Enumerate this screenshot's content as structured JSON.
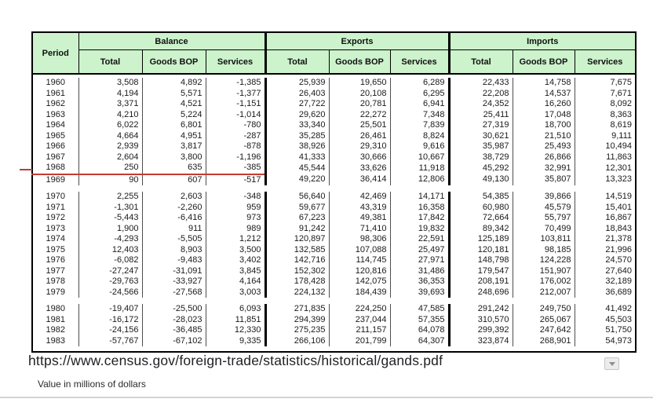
{
  "page": {
    "url_text": "https://www.census.gov/foreign-trade/statistics/historical/gands.pdf",
    "caption": "Value in millions of dollars",
    "dropdown_icon": "chevron-down-icon"
  },
  "colors": {
    "header_bg": "#ccf3cc",
    "table_border": "#000000",
    "red_annotation": "#c23b33",
    "bottom_rule": "#d4d4d4"
  },
  "table": {
    "period_header": "Period",
    "groups": [
      {
        "label": "Balance",
        "columns": [
          "Total",
          "Goods BOP",
          "Services"
        ]
      },
      {
        "label": "Exports",
        "columns": [
          "Total",
          "Goods BOP",
          "Services"
        ]
      },
      {
        "label": "Imports",
        "columns": [
          "Total",
          "Goods BOP",
          "Services"
        ]
      }
    ],
    "annotation": {
      "type": "red-underline",
      "after_period": "1968"
    },
    "row_blocks": [
      {
        "rows": [
          {
            "period": "1960",
            "values": [
              "3,508",
              "4,892",
              "-1,385",
              "25,939",
              "19,650",
              "6,289",
              "22,433",
              "14,758",
              "7,675"
            ]
          },
          {
            "period": "1961",
            "values": [
              "4,194",
              "5,571",
              "-1,377",
              "26,403",
              "20,108",
              "6,295",
              "22,208",
              "14,537",
              "7,671"
            ]
          },
          {
            "period": "1962",
            "values": [
              "3,371",
              "4,521",
              "-1,151",
              "27,722",
              "20,781",
              "6,941",
              "24,352",
              "16,260",
              "8,092"
            ]
          },
          {
            "period": "1963",
            "values": [
              "4,210",
              "5,224",
              "-1,014",
              "29,620",
              "22,272",
              "7,348",
              "25,411",
              "17,048",
              "8,363"
            ]
          },
          {
            "period": "1964",
            "values": [
              "6,022",
              "6,801",
              "-780",
              "33,340",
              "25,501",
              "7,839",
              "27,319",
              "18,700",
              "8,619"
            ]
          },
          {
            "period": "1965",
            "values": [
              "4,664",
              "4,951",
              "-287",
              "35,285",
              "26,461",
              "8,824",
              "30,621",
              "21,510",
              "9,111"
            ]
          },
          {
            "period": "1966",
            "values": [
              "2,939",
              "3,817",
              "-878",
              "38,926",
              "29,310",
              "9,616",
              "35,987",
              "25,493",
              "10,494"
            ]
          },
          {
            "period": "1967",
            "values": [
              "2,604",
              "3,800",
              "-1,196",
              "41,333",
              "30,666",
              "10,667",
              "38,729",
              "26,866",
              "11,863"
            ]
          },
          {
            "period": "1968",
            "values": [
              "250",
              "635",
              "-385",
              "45,544",
              "33,626",
              "11,918",
              "45,292",
              "32,991",
              "12,301"
            ]
          },
          {
            "period": "1969",
            "values": [
              "90",
              "607",
              "-517",
              "49,220",
              "36,414",
              "12,806",
              "49,130",
              "35,807",
              "13,323"
            ]
          }
        ]
      },
      {
        "rows": [
          {
            "period": "1970",
            "values": [
              "2,255",
              "2,603",
              "-348",
              "56,640",
              "42,469",
              "14,171",
              "54,385",
              "39,866",
              "14,519"
            ]
          },
          {
            "period": "1971",
            "values": [
              "-1,301",
              "-2,260",
              "959",
              "59,677",
              "43,319",
              "16,358",
              "60,980",
              "45,579",
              "15,401"
            ]
          },
          {
            "period": "1972",
            "values": [
              "-5,443",
              "-6,416",
              "973",
              "67,223",
              "49,381",
              "17,842",
              "72,664",
              "55,797",
              "16,867"
            ]
          },
          {
            "period": "1973",
            "values": [
              "1,900",
              "911",
              "989",
              "91,242",
              "71,410",
              "19,832",
              "89,342",
              "70,499",
              "18,843"
            ]
          },
          {
            "period": "1974",
            "values": [
              "-4,293",
              "-5,505",
              "1,212",
              "120,897",
              "98,306",
              "22,591",
              "125,189",
              "103,811",
              "21,378"
            ]
          },
          {
            "period": "1975",
            "values": [
              "12,403",
              "8,903",
              "3,500",
              "132,585",
              "107,088",
              "25,497",
              "120,181",
              "98,185",
              "21,996"
            ]
          },
          {
            "period": "1976",
            "values": [
              "-6,082",
              "-9,483",
              "3,402",
              "142,716",
              "114,745",
              "27,971",
              "148,798",
              "124,228",
              "24,570"
            ]
          },
          {
            "period": "1977",
            "values": [
              "-27,247",
              "-31,091",
              "3,845",
              "152,302",
              "120,816",
              "31,486",
              "179,547",
              "151,907",
              "27,640"
            ]
          },
          {
            "period": "1978",
            "values": [
              "-29,763",
              "-33,927",
              "4,164",
              "178,428",
              "142,075",
              "36,353",
              "208,191",
              "176,002",
              "32,189"
            ]
          },
          {
            "period": "1979",
            "values": [
              "-24,566",
              "-27,568",
              "3,003",
              "224,132",
              "184,439",
              "39,693",
              "248,696",
              "212,007",
              "36,689"
            ]
          }
        ]
      },
      {
        "rows": [
          {
            "period": "1980",
            "values": [
              "-19,407",
              "-25,500",
              "6,093",
              "271,835",
              "224,250",
              "47,585",
              "291,242",
              "249,750",
              "41,492"
            ]
          },
          {
            "period": "1981",
            "values": [
              "-16,172",
              "-28,023",
              "11,851",
              "294,399",
              "237,044",
              "57,355",
              "310,570",
              "265,067",
              "45,503"
            ]
          },
          {
            "period": "1982",
            "values": [
              "-24,156",
              "-36,485",
              "12,330",
              "275,235",
              "211,157",
              "64,078",
              "299,392",
              "247,642",
              "51,750"
            ]
          },
          {
            "period": "1983",
            "values": [
              "-57,767",
              "-67,102",
              "9,335",
              "266,106",
              "201,799",
              "64,307",
              "323,874",
              "268,901",
              "54,973"
            ]
          }
        ]
      }
    ]
  }
}
